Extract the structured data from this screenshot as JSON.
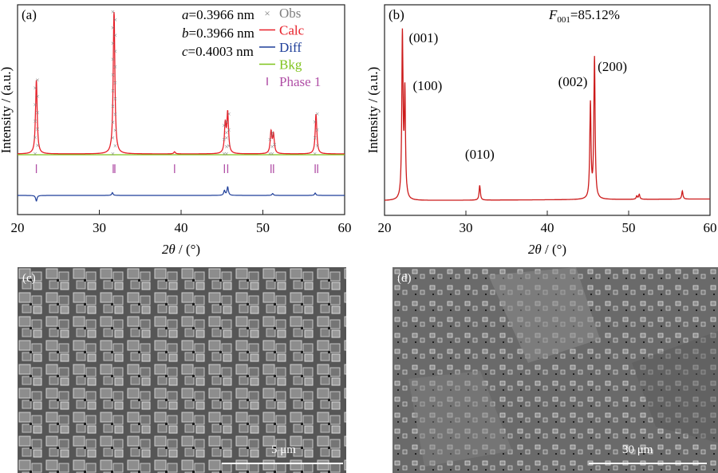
{
  "panel_a": {
    "label": "(a)",
    "lattice": [
      {
        "sym": "a",
        "text": "=0.3966 nm"
      },
      {
        "sym": "b",
        "text": "=0.3966 nm"
      },
      {
        "sym": "c",
        "text": "=0.4003 nm"
      }
    ],
    "legend": [
      {
        "name": "Obs",
        "color": "#808080",
        "marker": "×"
      },
      {
        "name": "Calc",
        "color": "#e8202a"
      },
      {
        "name": "Diff",
        "color": "#1f3f9a"
      },
      {
        "name": "Bkg",
        "color": "#7fc31c"
      },
      {
        "name": "Phase 1",
        "color": "#b04fa6",
        "marker": "|"
      }
    ],
    "ylabel": "Intensity / (a.u.)",
    "xlabel_sym": "2θ",
    "xlabel_unit": " / (°)"
  },
  "panel_b": {
    "label": "(b)",
    "f_sym": "F",
    "f_sub": "001",
    "f_text": "=85.12%",
    "ylabel": "Intensity / (a.u.)",
    "xlabel_sym": "2θ",
    "xlabel_unit": " / (°)",
    "peak_labels": [
      {
        "text": "(001)",
        "x": 22.2
      },
      {
        "text": "(100)",
        "x": 22.5
      },
      {
        "text": "(010)",
        "x": 31.7
      },
      {
        "text": "(002)",
        "x": 45.3
      },
      {
        "text": "(200)",
        "x": 45.8
      }
    ]
  },
  "panel_c": {
    "label": "(c)",
    "scale": "5 μm"
  },
  "panel_d": {
    "label": "(d)",
    "scale": "30 μm"
  },
  "colors": {
    "calc": "#e8202a",
    "diff": "#1f3f9a",
    "bkg": "#7fc31c",
    "obs": "#808080",
    "phase": "#b04fa6",
    "xrd_b": "#cc1a1a"
  },
  "chart_data": [
    {
      "type": "line",
      "title": "(a)",
      "xlabel": "2θ / (°)",
      "ylabel": "Intensity / (a.u.)",
      "xlim": [
        20,
        60
      ],
      "x_ticks": [
        20,
        30,
        40,
        50,
        60
      ],
      "y_ticks": false,
      "grid": false,
      "legend_position": "top-right",
      "series": [
        {
          "name": "Calc",
          "peaks": [
            {
              "x": 22.3,
              "value": 0.52
            },
            {
              "x": 31.8,
              "value": 1.0
            },
            {
              "x": 39.2,
              "value": 0.015
            },
            {
              "x": 45.4,
              "value": 0.2
            },
            {
              "x": 45.7,
              "value": 0.28
            },
            {
              "x": 51.0,
              "value": 0.15
            },
            {
              "x": 51.3,
              "value": 0.13
            },
            {
              "x": 56.5,
              "value": 0.28
            }
          ]
        },
        {
          "name": "Diff",
          "features": [
            {
              "x": 22.3,
              "value": -0.06
            },
            {
              "x": 31.6,
              "value": 0.03
            },
            {
              "x": 45.3,
              "value": 0.05
            },
            {
              "x": 45.7,
              "value": 0.09
            },
            {
              "x": 51.2,
              "value": 0.02
            },
            {
              "x": 56.4,
              "value": 0.025
            }
          ]
        },
        {
          "name": "Phase 1",
          "reflections": [
            22.3,
            31.7,
            31.9,
            39.2,
            45.3,
            45.7,
            51.0,
            51.3,
            56.4,
            56.7
          ]
        }
      ]
    },
    {
      "type": "line",
      "title": "(b)",
      "xlabel": "2θ / (°)",
      "ylabel": "Intensity / (a.u.)",
      "xlim": [
        20,
        60
      ],
      "x_ticks": [
        20,
        30,
        40,
        50,
        60
      ],
      "y_ticks": false,
      "grid": false,
      "peaks": [
        {
          "x": 22.2,
          "value": 1.0,
          "label": "(001)"
        },
        {
          "x": 22.5,
          "value": 0.64,
          "label": "(100)"
        },
        {
          "x": 31.7,
          "value": 0.09,
          "label": "(010)"
        },
        {
          "x": 45.3,
          "value": 0.58,
          "label": "(002)"
        },
        {
          "x": 45.8,
          "value": 0.86,
          "label": "(200)"
        },
        {
          "x": 51.0,
          "value": 0.02
        },
        {
          "x": 51.3,
          "value": 0.03
        },
        {
          "x": 56.6,
          "value": 0.05
        }
      ]
    }
  ]
}
